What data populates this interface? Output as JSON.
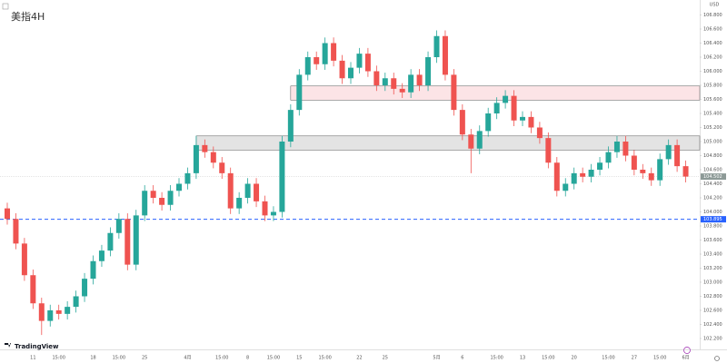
{
  "chart_data": {
    "type": "candlestick",
    "title": "美指4H",
    "currency": "USD",
    "watermark": "TradingView",
    "up_color": "#26a69a",
    "down_color": "#ef5350",
    "categories": [
      null,
      null,
      null,
      "11",
      null,
      null,
      "15:00",
      null,
      null,
      null,
      "18",
      null,
      null,
      "15:00",
      null,
      null,
      "25",
      null,
      null,
      null,
      null,
      "4月",
      null,
      null,
      null,
      "15:00",
      null,
      null,
      "8",
      null,
      null,
      "15:00",
      null,
      null,
      "15",
      null,
      null,
      "15:00",
      null,
      null,
      null,
      "22",
      null,
      null,
      "25",
      null,
      null,
      null,
      null,
      null,
      "5月",
      null,
      null,
      "6",
      null,
      null,
      null,
      "15:00",
      null,
      null,
      "13",
      null,
      null,
      "15:00",
      null,
      null,
      "20",
      null,
      null,
      null,
      "15:00",
      null,
      null,
      "27",
      null,
      null,
      "15:00",
      null,
      null,
      "6月"
    ],
    "open": [
      104.05,
      103.9,
      103.55,
      103.1,
      102.7,
      102.45,
      102.6,
      102.55,
      102.65,
      102.8,
      103.05,
      103.3,
      103.45,
      103.7,
      103.9,
      103.25,
      103.95,
      104.3,
      104.2,
      104.1,
      104.3,
      104.4,
      104.55,
      104.95,
      104.85,
      104.7,
      104.55,
      104.05,
      104.2,
      104.4,
      104.15,
      103.95,
      104.0,
      105.0,
      105.45,
      105.95,
      106.2,
      106.1,
      106.4,
      106.15,
      105.9,
      106.05,
      106.25,
      106.0,
      105.8,
      105.9,
      105.75,
      105.7,
      105.95,
      105.8,
      106.2,
      106.5,
      105.95,
      105.45,
      105.1,
      104.9,
      105.15,
      105.4,
      105.55,
      105.65,
      105.3,
      105.35,
      105.2,
      105.05,
      104.7,
      104.3,
      104.4,
      104.55,
      104.5,
      104.6,
      104.7,
      104.85,
      105.0,
      104.8,
      104.6,
      104.55,
      104.45,
      104.75,
      104.95,
      104.65
    ],
    "high": [
      104.13,
      103.98,
      103.63,
      103.18,
      102.78,
      102.68,
      102.68,
      102.73,
      102.88,
      103.13,
      103.38,
      103.53,
      103.78,
      103.98,
      103.98,
      104.03,
      104.38,
      104.38,
      104.28,
      104.38,
      104.48,
      104.63,
      105.08,
      105.03,
      104.93,
      104.78,
      104.63,
      104.28,
      104.48,
      104.48,
      104.23,
      104.08,
      105.08,
      105.53,
      106.03,
      106.28,
      106.28,
      106.48,
      106.48,
      106.23,
      106.13,
      106.33,
      106.33,
      106.08,
      105.98,
      105.98,
      105.83,
      106.03,
      106.03,
      106.28,
      106.58,
      106.58,
      106.03,
      105.53,
      105.18,
      105.23,
      105.48,
      105.63,
      105.73,
      105.73,
      105.43,
      105.43,
      105.28,
      105.13,
      104.78,
      104.48,
      104.63,
      104.63,
      104.68,
      104.78,
      104.93,
      105.08,
      105.08,
      104.88,
      104.68,
      104.63,
      104.83,
      105.03,
      105.03,
      104.73
    ],
    "low": [
      103.82,
      103.47,
      103.02,
      102.62,
      102.25,
      102.37,
      102.47,
      102.47,
      102.57,
      102.72,
      102.97,
      103.22,
      103.37,
      103.62,
      103.17,
      103.17,
      103.87,
      104.12,
      104.02,
      104.02,
      104.22,
      104.32,
      104.47,
      104.77,
      104.62,
      104.47,
      103.97,
      103.97,
      104.12,
      104.07,
      103.87,
      103.87,
      103.92,
      104.92,
      105.37,
      105.87,
      106.02,
      106.02,
      106.07,
      105.82,
      105.82,
      105.97,
      105.92,
      105.72,
      105.72,
      105.67,
      105.62,
      105.62,
      105.72,
      105.72,
      106.12,
      105.87,
      105.37,
      105.02,
      104.55,
      104.82,
      105.07,
      105.32,
      105.47,
      105.22,
      105.22,
      105.12,
      104.97,
      104.62,
      104.22,
      104.22,
      104.32,
      104.42,
      104.42,
      104.52,
      104.62,
      104.77,
      104.72,
      104.52,
      104.47,
      104.37,
      104.37,
      104.67,
      104.57,
      104.42
    ],
    "close": [
      103.9,
      103.55,
      103.1,
      102.7,
      102.45,
      102.6,
      102.55,
      102.65,
      102.8,
      103.05,
      103.3,
      103.45,
      103.7,
      103.9,
      103.25,
      103.95,
      104.3,
      104.2,
      104.1,
      104.3,
      104.4,
      104.55,
      104.95,
      104.85,
      104.7,
      104.55,
      104.05,
      104.2,
      104.4,
      104.15,
      103.95,
      104.0,
      105.0,
      105.45,
      105.95,
      106.2,
      106.1,
      106.4,
      106.15,
      105.9,
      106.05,
      106.25,
      106.0,
      105.8,
      105.9,
      105.75,
      105.7,
      105.95,
      105.8,
      106.2,
      106.5,
      105.95,
      105.45,
      105.1,
      104.9,
      105.15,
      105.4,
      105.55,
      105.65,
      105.3,
      105.35,
      105.2,
      105.05,
      104.7,
      104.3,
      104.4,
      104.55,
      104.5,
      104.6,
      104.7,
      104.85,
      105.0,
      104.8,
      104.6,
      104.55,
      104.45,
      104.75,
      104.95,
      104.65,
      104.502
    ],
    "zones": [
      {
        "low": 105.59,
        "high": 105.79,
        "start": 33,
        "color": "#fce4e6"
      },
      {
        "low": 104.88,
        "high": 105.08,
        "start": 22,
        "color": "#e3e3e3"
      }
    ],
    "level": {
      "value": 103.895,
      "label": "103.895",
      "color": "#2962ff"
    },
    "ylim": [
      102.045,
      107.013
    ],
    "yticks": [
      {
        "value": 106.8,
        "label": "106.800"
      },
      {
        "value": 106.6,
        "label": "106.600"
      },
      {
        "value": 106.4,
        "label": "106.400"
      },
      {
        "value": 106.2,
        "label": "106.200"
      },
      {
        "value": 106.0,
        "label": "106.000"
      },
      {
        "value": 105.8,
        "label": "105.800"
      },
      {
        "value": 105.6,
        "label": "105.600"
      },
      {
        "value": 105.4,
        "label": "105.400"
      },
      {
        "value": 105.2,
        "label": "105.200"
      },
      {
        "value": 105.0,
        "label": "105.000"
      },
      {
        "value": 104.8,
        "label": "104.800"
      },
      {
        "value": 104.6,
        "label": "104.600"
      },
      {
        "value": 104.4,
        "label": "104.400"
      },
      {
        "value": 104.2,
        "label": "104.200"
      },
      {
        "value": 104.0,
        "label": "104.000"
      },
      {
        "value": 103.8,
        "label": "103.800"
      },
      {
        "value": 103.6,
        "label": "103.600"
      },
      {
        "value": 103.4,
        "label": "103.400"
      },
      {
        "value": 103.2,
        "label": "103.200"
      },
      {
        "value": 103.0,
        "label": "103.000"
      },
      {
        "value": 102.8,
        "label": "102.800"
      },
      {
        "value": 102.6,
        "label": "102.600"
      },
      {
        "value": 102.4,
        "label": "102.400"
      },
      {
        "value": 102.2,
        "label": "102.200"
      }
    ]
  }
}
